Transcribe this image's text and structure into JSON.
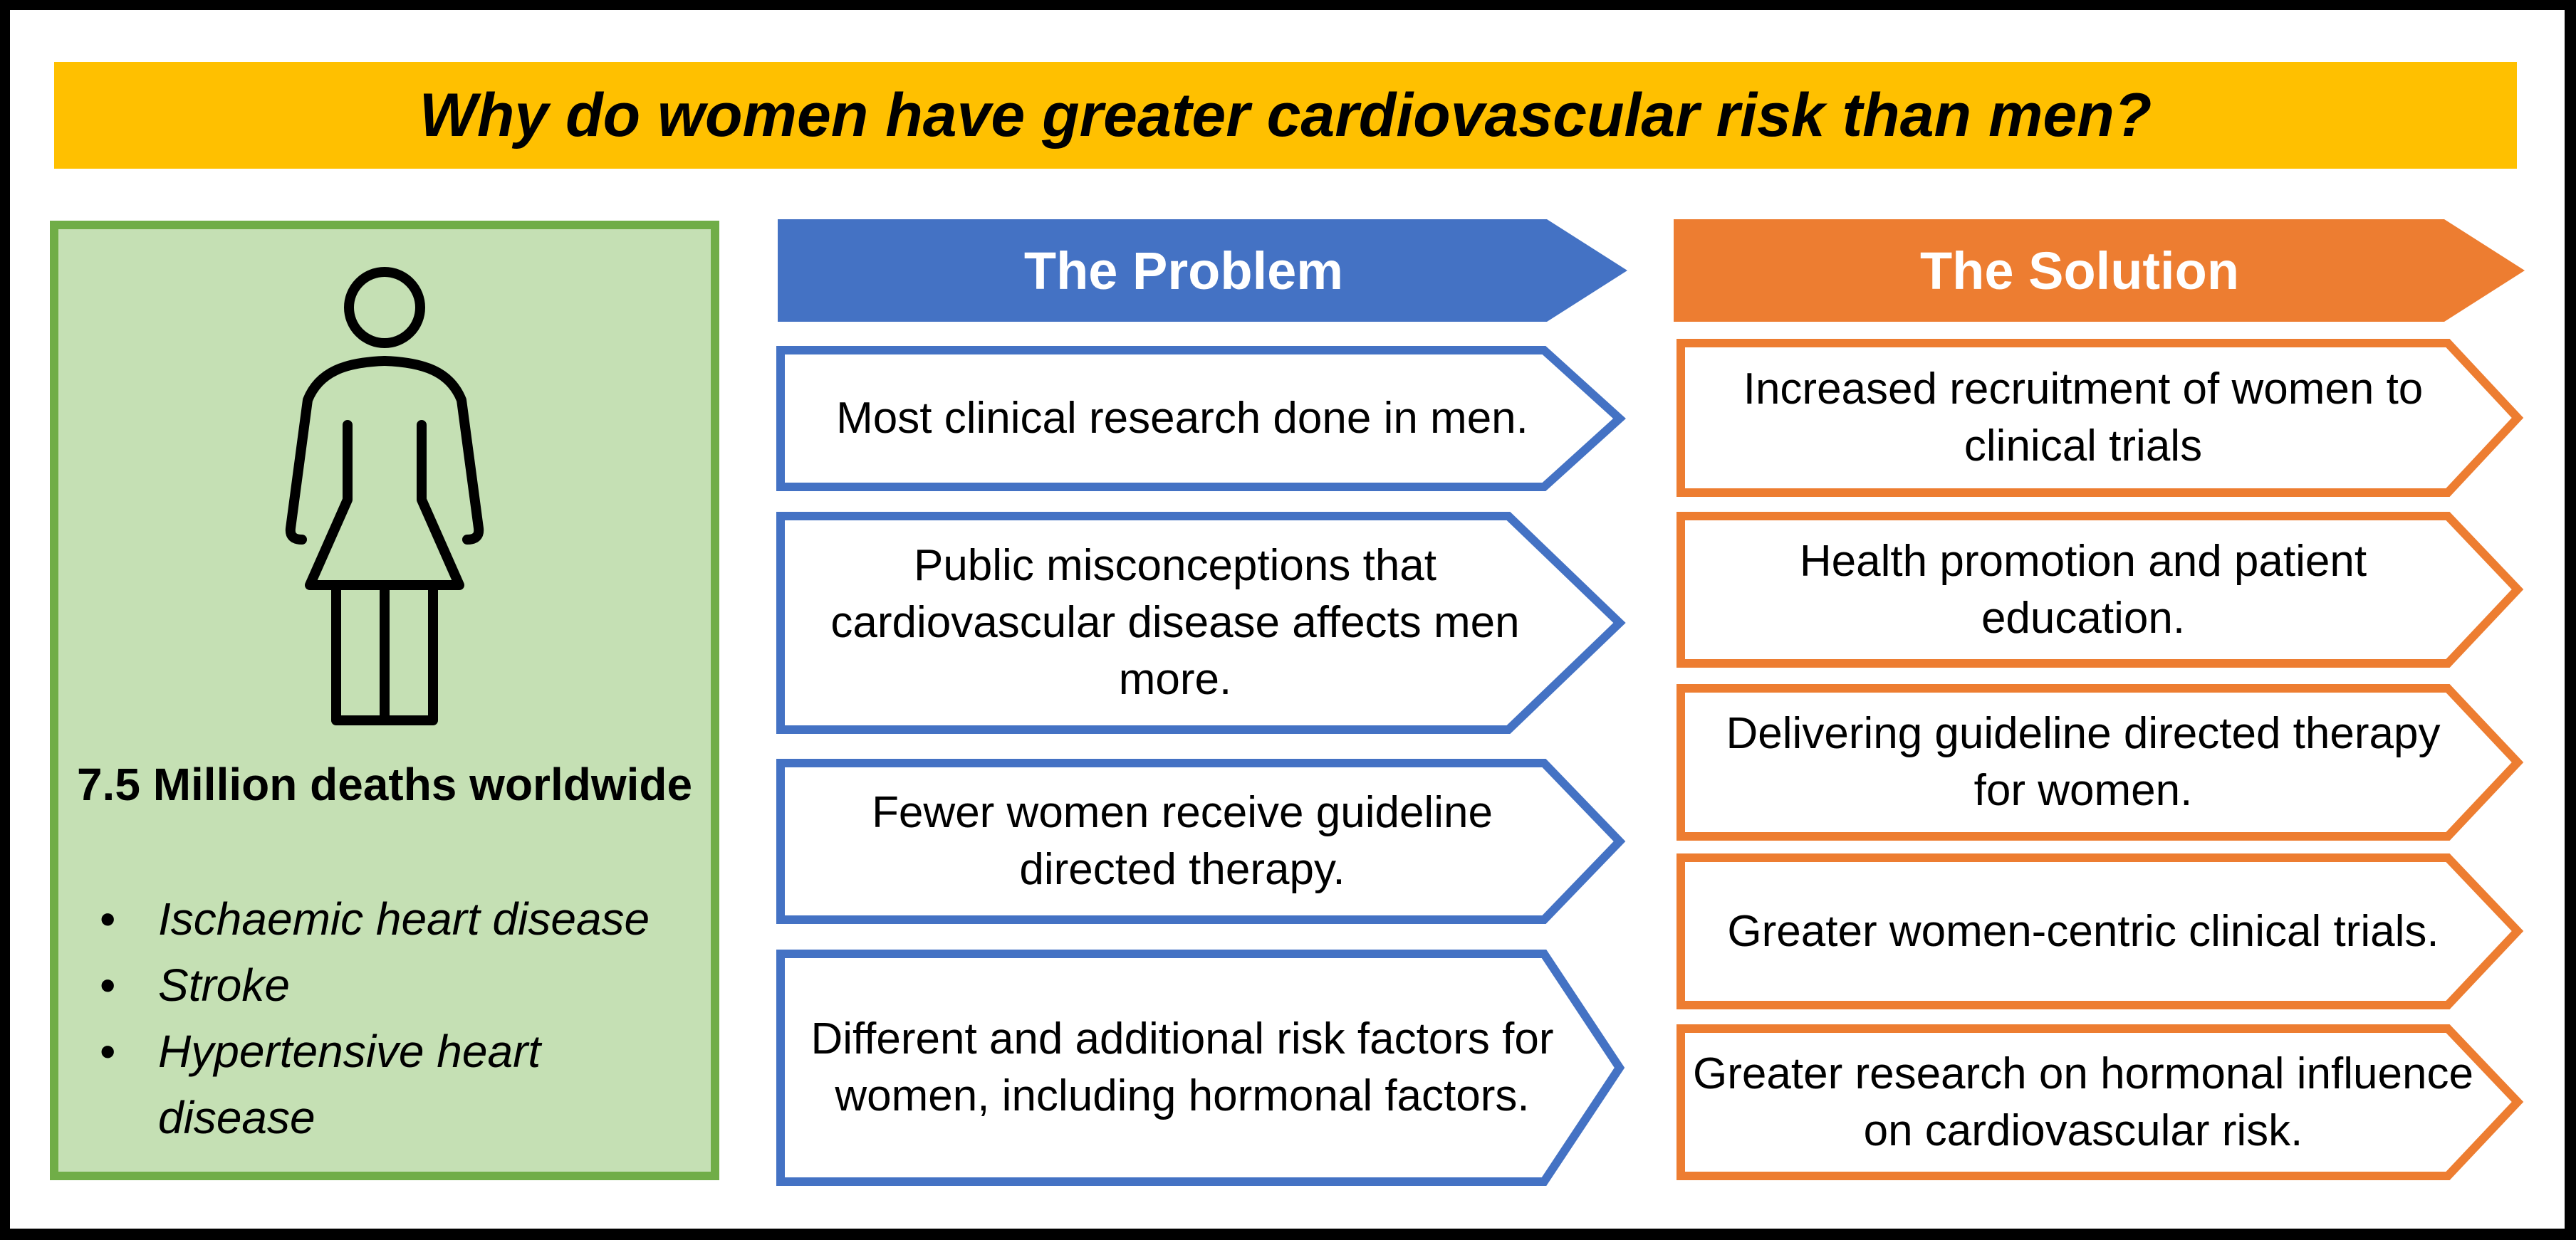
{
  "title": "Why do women have greater cardiovascular risk than men?",
  "colors": {
    "title_bar": "#FFC000",
    "stats_fill": "#C5E0B4",
    "stats_border": "#70AD47",
    "problem_blue": "#4472C4",
    "solution_orange": "#ED7D31"
  },
  "stats": {
    "icon": "woman-icon",
    "headline": "7.5 Million deaths worldwide",
    "causes": [
      "Ischaemic heart disease",
      "Stroke",
      "Hypertensive heart disease"
    ]
  },
  "problem": {
    "header": "The Problem",
    "items": [
      "Most clinical research done in men.",
      "Public misconceptions that cardiovascular disease affects men more.",
      "Fewer women receive guideline directed therapy.",
      "Different and additional risk factors for women, including hormonal factors."
    ]
  },
  "solution": {
    "header": "The Solution",
    "items": [
      "Increased recruitment of women to clinical trials",
      "Health promotion and patient education.",
      "Delivering guideline directed therapy for women.",
      "Greater women-centric clinical trials.",
      "Greater research on hormonal influence on cardiovascular risk."
    ]
  }
}
